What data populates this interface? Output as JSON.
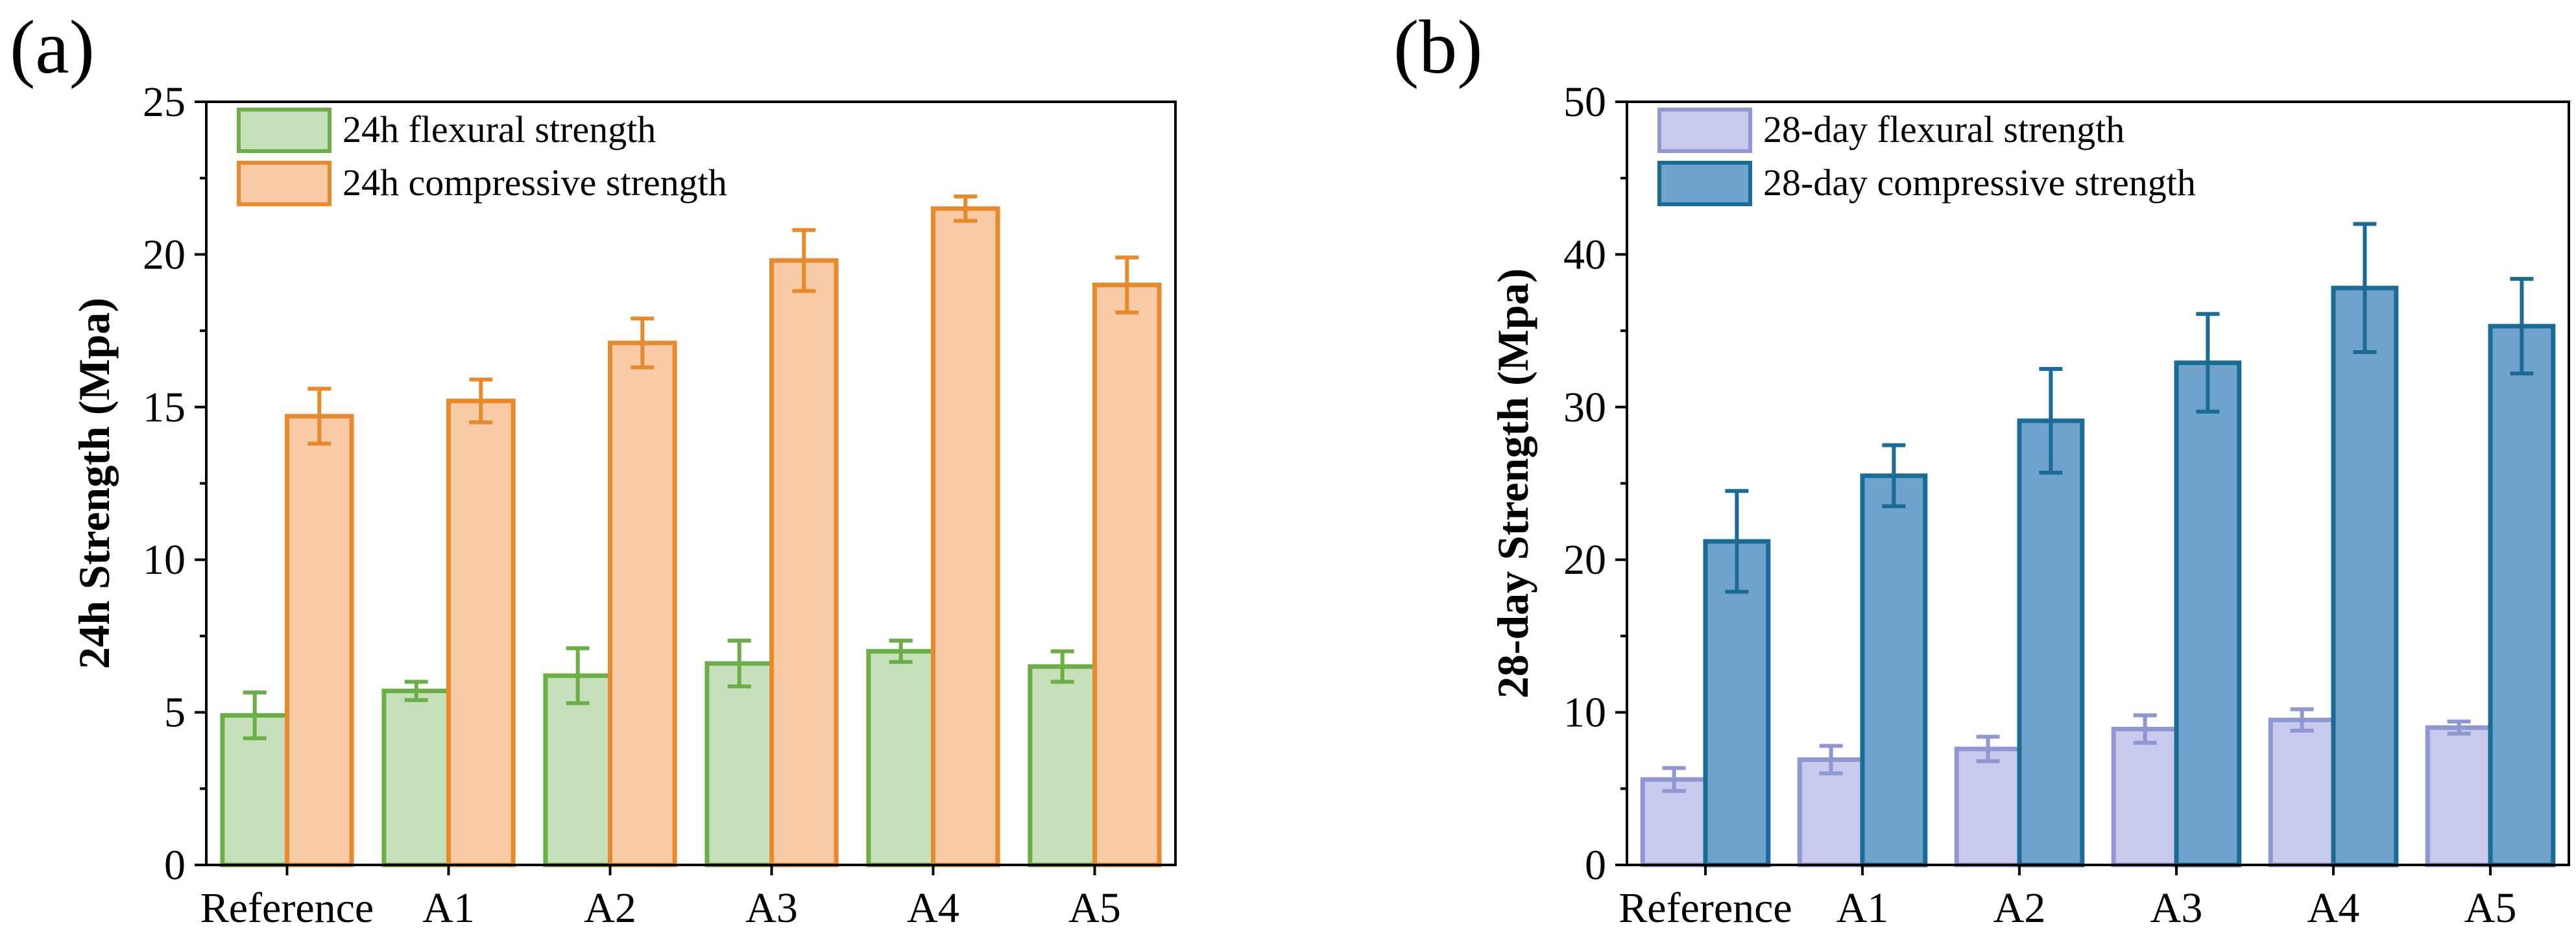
{
  "chart_data": [
    {
      "panel_label": "(a)",
      "type": "bar",
      "categories": [
        "Reference",
        "A1",
        "A2",
        "A3",
        "A4",
        "A5"
      ],
      "series": [
        {
          "name": "24h flexural strength",
          "values": [
            4.9,
            5.7,
            6.2,
            6.6,
            7.0,
            6.5
          ],
          "errors": [
            0.75,
            0.3,
            0.9,
            0.75,
            0.35,
            0.5
          ],
          "fill": "#c5e0bb",
          "stroke": "#6aae45"
        },
        {
          "name": "24h compressive strength",
          "values": [
            14.7,
            15.2,
            17.1,
            19.8,
            21.5,
            19.0
          ],
          "errors": [
            0.9,
            0.7,
            0.8,
            1.0,
            0.4,
            0.9
          ],
          "fill": "#f8cba6",
          "stroke": "#e8892b"
        }
      ],
      "xlabel": "",
      "ylabel": "24h Strength (Mpa)",
      "ylim": [
        0,
        25
      ],
      "yticks": [
        "0",
        "5",
        "10",
        "15",
        "20",
        "25"
      ],
      "ytick_values": [
        0,
        5,
        10,
        15,
        20,
        25
      ],
      "grid": false,
      "legend": "top-left"
    },
    {
      "panel_label": "(b)",
      "type": "bar",
      "categories": [
        "Reference",
        "A1",
        "A2",
        "A3",
        "A4",
        "A5"
      ],
      "series": [
        {
          "name": "28-day flexural strength",
          "values": [
            5.6,
            6.9,
            7.6,
            8.9,
            9.5,
            9.0
          ],
          "errors": [
            0.75,
            0.9,
            0.8,
            0.9,
            0.7,
            0.4
          ],
          "fill": "#c9c9ee",
          "stroke": "#8f97d3"
        },
        {
          "name": "28-day compressive strength",
          "values": [
            21.2,
            25.5,
            29.1,
            32.9,
            37.8,
            35.3
          ],
          "errors": [
            3.3,
            2.0,
            3.4,
            3.2,
            4.2,
            3.1
          ],
          "fill": "#6fa3cc",
          "stroke": "#1a6c97"
        }
      ],
      "xlabel": "",
      "ylabel": "28-day Strength (Mpa)",
      "ylim": [
        0,
        50
      ],
      "yticks": [
        "0",
        "10",
        "20",
        "30",
        "40",
        "50"
      ],
      "ytick_values": [
        0,
        10,
        20,
        30,
        40,
        50
      ],
      "grid": false,
      "legend": "top-left"
    }
  ]
}
